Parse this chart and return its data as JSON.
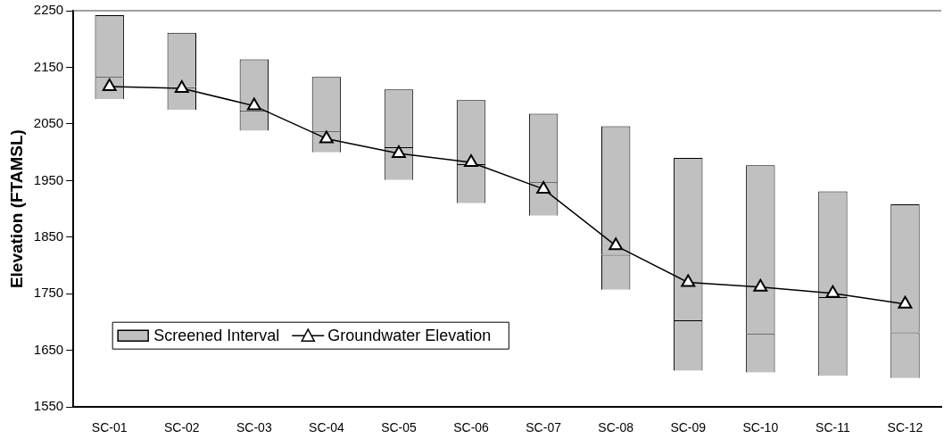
{
  "chart_data": {
    "type": "bar",
    "ylabel": "Elevation (FTAMSL)",
    "categories": [
      "SC-01",
      "SC-02",
      "SC-03",
      "SC-04",
      "SC-05",
      "SC-06",
      "SC-07",
      "SC-08",
      "SC-09",
      "SC-10",
      "SC-11",
      "SC-12"
    ],
    "series": [
      {
        "name": "Screened Interval",
        "color": "#c0c0c0",
        "base": [
          2094,
          2075,
          2038,
          2000,
          1951,
          1910,
          1888,
          1757,
          1614,
          1611,
          1605,
          1601
        ],
        "values": [
          39,
          40,
          36,
          37,
          58,
          69,
          59,
          62,
          89,
          68,
          139,
          81
        ]
      },
      {
        "color": "#c0c0c0",
        "base": [
          2133,
          2115,
          2074,
          2037,
          2009,
          1979,
          1947,
          1819,
          1703,
          1679,
          1744,
          1682
        ],
        "values": [
          109,
          96,
          90,
          96,
          102,
          113,
          121,
          227,
          287,
          298,
          187,
          226
        ]
      },
      {
        "name": "Groundwater Elevation",
        "type": "line",
        "color": "#000000",
        "marker": "triangle",
        "line_style": "solid",
        "values": [
          2116,
          2113,
          2082,
          2024,
          1998,
          1982,
          1935,
          1835,
          1770,
          1762,
          1751,
          1732
        ]
      }
    ],
    "ylim": [
      1550,
      2250
    ],
    "yticks": [
      1550,
      1650,
      1750,
      1850,
      1950,
      2050,
      2150,
      2250
    ],
    "grid": false,
    "legend": "bottom left"
  }
}
